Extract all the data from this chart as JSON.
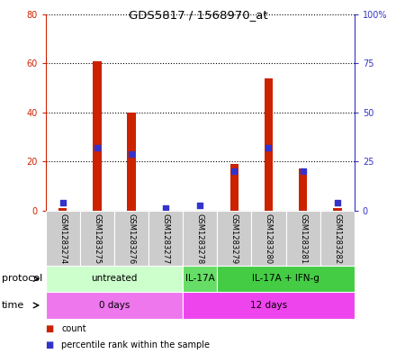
{
  "title": "GDS5817 / 1568970_at",
  "samples": [
    "GSM1283274",
    "GSM1283275",
    "GSM1283276",
    "GSM1283277",
    "GSM1283278",
    "GSM1283279",
    "GSM1283280",
    "GSM1283281",
    "GSM1283282"
  ],
  "counts": [
    1,
    61,
    40,
    0,
    0,
    19,
    54,
    17,
    1
  ],
  "percentiles": [
    4,
    32,
    29,
    1.5,
    2.5,
    20,
    32,
    20,
    4
  ],
  "ylim_left": [
    0,
    80
  ],
  "ylim_right": [
    0,
    100
  ],
  "yticks_left": [
    0,
    20,
    40,
    60,
    80
  ],
  "yticks_right": [
    0,
    25,
    50,
    75,
    100
  ],
  "ytick_labels_left": [
    "0",
    "20",
    "40",
    "60",
    "80"
  ],
  "ytick_labels_right": [
    "0",
    "25",
    "50",
    "75",
    "100%"
  ],
  "bar_color": "#cc2200",
  "dot_color": "#3333cc",
  "protocol_groups": [
    {
      "label": "untreated",
      "start": 0,
      "end": 3,
      "color": "#ccffcc"
    },
    {
      "label": "IL-17A",
      "start": 4,
      "end": 4,
      "color": "#66dd66"
    },
    {
      "label": "IL-17A + IFN-g",
      "start": 5,
      "end": 8,
      "color": "#44cc44"
    }
  ],
  "time_groups": [
    {
      "label": "0 days",
      "start": 0,
      "end": 3,
      "color": "#ee77ee"
    },
    {
      "label": "12 days",
      "start": 4,
      "end": 8,
      "color": "#ee44ee"
    }
  ],
  "protocol_label": "protocol",
  "time_label": "time",
  "legend_count": "count",
  "legend_percentile": "percentile rank within the sample",
  "bar_width": 0.25,
  "dot_size": 25
}
